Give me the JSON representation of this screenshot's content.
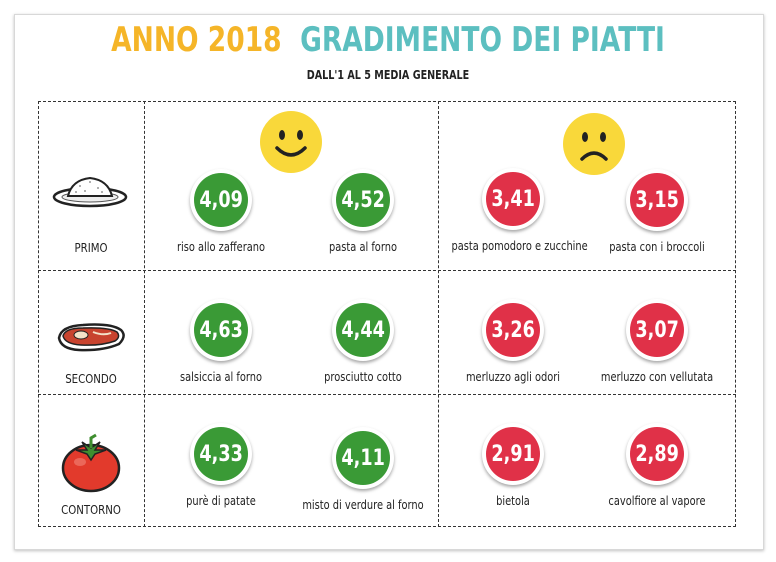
{
  "title": {
    "year": "ANNO 2018",
    "main": "GRADIMENTO DEI PIATTI"
  },
  "subtitle": "DALL'1 AL 5 MEDIA GENERALE",
  "colors": {
    "good": "#3a9a36",
    "bad": "#e03148",
    "year": "#f5b528",
    "title": "#5cbfc0",
    "smiley": "#f9d83a"
  },
  "columns": {
    "good_icon": "happy-face-icon",
    "bad_icon": "sad-face-icon"
  },
  "rows": [
    {
      "category": "PRIMO",
      "icon": "rice-plate-icon",
      "dishes": [
        {
          "score": "4,09",
          "name": "riso allo zafferano",
          "rating": "good"
        },
        {
          "score": "4,52",
          "name": "pasta al forno",
          "rating": "good"
        },
        {
          "score": "3,41",
          "name": "pasta pomodoro e zucchine",
          "rating": "bad"
        },
        {
          "score": "3,15",
          "name": "pasta con i broccoli",
          "rating": "bad"
        }
      ]
    },
    {
      "category": "SECONDO",
      "icon": "steak-icon",
      "dishes": [
        {
          "score": "4,63",
          "name": "salsiccia al forno",
          "rating": "good"
        },
        {
          "score": "4,44",
          "name": "prosciutto cotto",
          "rating": "good"
        },
        {
          "score": "3,26",
          "name": "merluzzo agli odori",
          "rating": "bad"
        },
        {
          "score": "3,07",
          "name": "merluzzo con vellutata",
          "rating": "bad"
        }
      ]
    },
    {
      "category": "CONTORNO",
      "icon": "tomato-icon",
      "dishes": [
        {
          "score": "4,33",
          "name": "purè di patate",
          "rating": "good"
        },
        {
          "score": "4,11",
          "name": "misto di verdure al forno",
          "rating": "good"
        },
        {
          "score": "2,91",
          "name": "bietola",
          "rating": "bad"
        },
        {
          "score": "2,89",
          "name": "cavolfiore al vapore",
          "rating": "bad"
        }
      ]
    }
  ]
}
